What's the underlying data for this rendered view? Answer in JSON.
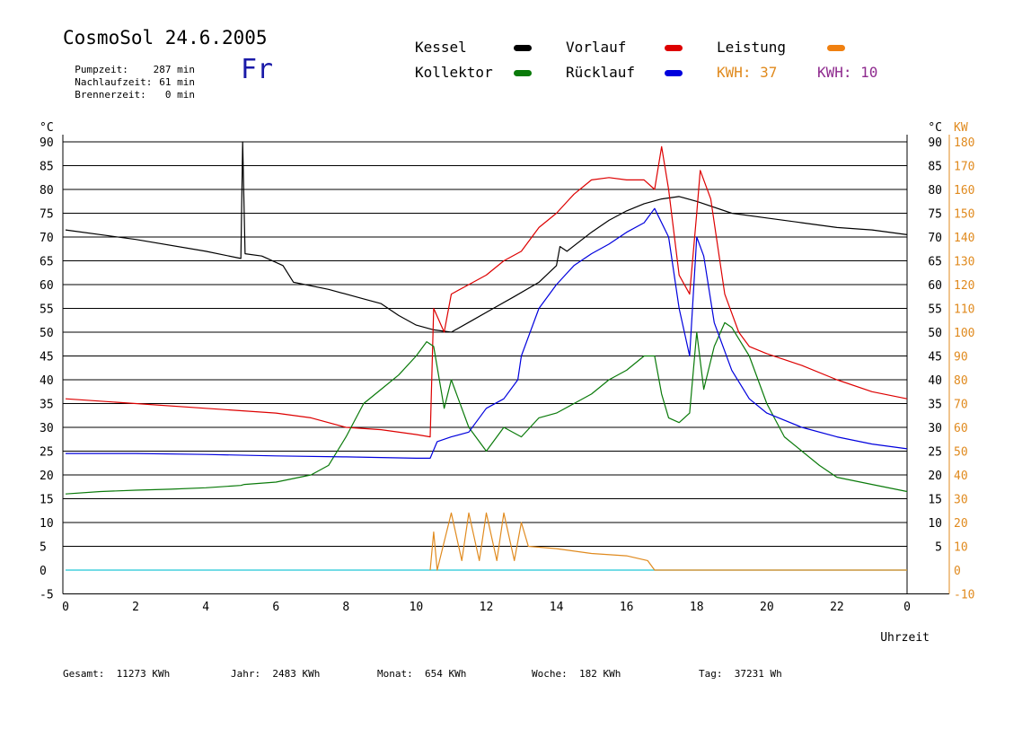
{
  "header": {
    "title": "CosmoSol 24.6.2005",
    "day": "Fr",
    "stats": [
      {
        "label": "Pumpzeit:",
        "value": "287 min"
      },
      {
        "label": "Nachlaufzeit:",
        "value": "61 min"
      },
      {
        "label": "Brennerzeit:",
        "value": "0 min"
      }
    ]
  },
  "legend": [
    {
      "label": "Kessel",
      "color": "#000000"
    },
    {
      "label": "Vorlauf",
      "color": "#dd0000"
    },
    {
      "label": "Leistung",
      "color": "#f08010"
    },
    {
      "label": "Kollektor",
      "color": "#0a7a0a"
    },
    {
      "label": "Rücklauf",
      "color": "#0000dd"
    }
  ],
  "kwh": [
    {
      "label": "KWH:",
      "value": "37",
      "color": "#e08a1e"
    },
    {
      "label": "KWH:",
      "value": "10",
      "color": "#8e2a8e"
    }
  ],
  "footer": [
    {
      "label": "Gesamt:",
      "value": "11273 KWh"
    },
    {
      "label": "Jahr:",
      "value": "2483 KWh"
    },
    {
      "label": "Monat:",
      "value": "654 KWh"
    },
    {
      "label": "Woche:",
      "value": "182 KWh"
    },
    {
      "label": "Tag:",
      "value": "37231 Wh"
    }
  ],
  "chart_data": {
    "type": "line",
    "xlabel": "Uhrzeit",
    "ylabel": "°C",
    "y2label": "KW",
    "xlim": [
      0,
      24
    ],
    "ylim": [
      -5,
      90
    ],
    "y2lim": [
      -10,
      180
    ],
    "x_ticks": [
      "0",
      "2",
      "4",
      "6",
      "8",
      "10",
      "12",
      "14",
      "16",
      "18",
      "20",
      "22",
      "0"
    ],
    "y_left_ticks": [
      "-5",
      "0",
      "5",
      "10",
      "15",
      "20",
      "25",
      "30",
      "35",
      "40",
      "45",
      "50",
      "55",
      "60",
      "65",
      "70",
      "75",
      "80",
      "85",
      "90"
    ],
    "y_right_temp_ticks": [
      "5",
      "10",
      "15",
      "20",
      "25",
      "30",
      "35",
      "40",
      "45",
      "50",
      "55",
      "60",
      "65",
      "70",
      "75",
      "80",
      "85",
      "90"
    ],
    "y_right_kw_ticks": [
      "-10",
      "0",
      "10",
      "20",
      "30",
      "40",
      "50",
      "60",
      "70",
      "80",
      "90",
      "100",
      "110",
      "120",
      "130",
      "140",
      "150",
      "160",
      "170",
      "180"
    ],
    "grid": true,
    "series": [
      {
        "name": "Kessel",
        "color": "#000000",
        "points": [
          [
            0,
            71.5
          ],
          [
            2,
            69.5
          ],
          [
            4,
            67
          ],
          [
            5,
            65.5
          ],
          [
            5.05,
            90
          ],
          [
            5.12,
            66.5
          ],
          [
            5.6,
            66
          ],
          [
            6.2,
            64
          ],
          [
            6.5,
            60.5
          ],
          [
            7.5,
            59
          ],
          [
            8.5,
            57
          ],
          [
            9,
            56
          ],
          [
            9.5,
            53.5
          ],
          [
            10,
            51.5
          ],
          [
            10.5,
            50.5
          ],
          [
            11,
            50
          ],
          [
            11.6,
            52.5
          ],
          [
            12.2,
            55
          ],
          [
            12.8,
            57.5
          ],
          [
            13.5,
            60.5
          ],
          [
            14,
            64
          ],
          [
            14.1,
            68
          ],
          [
            14.3,
            67
          ],
          [
            15,
            71
          ],
          [
            15.5,
            73.5
          ],
          [
            16,
            75.5
          ],
          [
            16.5,
            77
          ],
          [
            17,
            78
          ],
          [
            17.5,
            78.5
          ],
          [
            18,
            77.5
          ],
          [
            19,
            75
          ],
          [
            20,
            74
          ],
          [
            21,
            73
          ],
          [
            22,
            72
          ],
          [
            23,
            71.5
          ],
          [
            24,
            70.5
          ]
        ]
      },
      {
        "name": "Vorlauf",
        "color": "#dd0000",
        "points": [
          [
            0,
            36
          ],
          [
            2,
            35
          ],
          [
            4,
            34
          ],
          [
            6,
            33
          ],
          [
            7,
            32
          ],
          [
            8,
            30
          ],
          [
            9,
            29.5
          ],
          [
            10,
            28.5
          ],
          [
            10.4,
            28
          ],
          [
            10.5,
            55
          ],
          [
            10.8,
            50
          ],
          [
            11,
            58
          ],
          [
            11.5,
            60
          ],
          [
            12,
            62
          ],
          [
            12.5,
            65
          ],
          [
            13,
            67
          ],
          [
            13.5,
            72
          ],
          [
            14,
            75
          ],
          [
            14.5,
            79
          ],
          [
            15,
            82
          ],
          [
            15.5,
            82.5
          ],
          [
            16,
            82
          ],
          [
            16.5,
            82
          ],
          [
            16.8,
            80
          ],
          [
            17,
            89
          ],
          [
            17.2,
            80
          ],
          [
            17.5,
            62
          ],
          [
            17.8,
            58
          ],
          [
            18,
            75
          ],
          [
            18.1,
            84
          ],
          [
            18.4,
            78
          ],
          [
            18.8,
            58
          ],
          [
            19.2,
            50
          ],
          [
            19.5,
            47
          ],
          [
            20,
            45.5
          ],
          [
            21,
            43
          ],
          [
            22,
            40
          ],
          [
            23,
            37.5
          ],
          [
            24,
            36
          ]
        ]
      },
      {
        "name": "Kollektor",
        "color": "#0a7a0a",
        "points": [
          [
            0,
            16
          ],
          [
            1,
            16.5
          ],
          [
            2,
            16.8
          ],
          [
            3,
            17
          ],
          [
            4,
            17.3
          ],
          [
            5,
            17.8
          ],
          [
            5.1,
            18
          ],
          [
            6,
            18.5
          ],
          [
            7,
            20
          ],
          [
            7.5,
            22
          ],
          [
            8,
            28
          ],
          [
            8.5,
            35
          ],
          [
            9,
            38
          ],
          [
            9.5,
            41
          ],
          [
            10,
            45
          ],
          [
            10.3,
            48
          ],
          [
            10.5,
            47
          ],
          [
            10.8,
            34
          ],
          [
            11,
            40
          ],
          [
            11.5,
            30
          ],
          [
            12,
            25
          ],
          [
            12.5,
            30
          ],
          [
            13,
            28
          ],
          [
            13.5,
            32
          ],
          [
            14,
            33
          ],
          [
            14.5,
            35
          ],
          [
            15,
            37
          ],
          [
            15.5,
            40
          ],
          [
            16,
            42
          ],
          [
            16.5,
            45
          ],
          [
            16.8,
            45
          ],
          [
            17,
            37
          ],
          [
            17.2,
            32
          ],
          [
            17.5,
            31
          ],
          [
            17.8,
            33
          ],
          [
            18,
            50
          ],
          [
            18.2,
            38
          ],
          [
            18.5,
            47
          ],
          [
            18.8,
            52
          ],
          [
            19,
            51
          ],
          [
            19.5,
            45
          ],
          [
            20,
            35
          ],
          [
            20.5,
            28
          ],
          [
            21,
            25
          ],
          [
            21.5,
            22
          ],
          [
            22,
            19.5
          ],
          [
            23,
            18
          ],
          [
            24,
            16.5
          ]
        ]
      },
      {
        "name": "Rücklauf",
        "color": "#0000dd",
        "points": [
          [
            0,
            24.5
          ],
          [
            2,
            24.5
          ],
          [
            4,
            24.3
          ],
          [
            6,
            24
          ],
          [
            8,
            23.8
          ],
          [
            10,
            23.5
          ],
          [
            10.4,
            23.5
          ],
          [
            10.6,
            27
          ],
          [
            11,
            28
          ],
          [
            11.5,
            29
          ],
          [
            12,
            34
          ],
          [
            12.5,
            36
          ],
          [
            12.9,
            40
          ],
          [
            13,
            45
          ],
          [
            13.5,
            55
          ],
          [
            14,
            60
          ],
          [
            14.5,
            64
          ],
          [
            15,
            66.5
          ],
          [
            15.5,
            68.5
          ],
          [
            16,
            71
          ],
          [
            16.5,
            73
          ],
          [
            16.8,
            76
          ],
          [
            17.2,
            70
          ],
          [
            17.5,
            55
          ],
          [
            17.8,
            45
          ],
          [
            18,
            70
          ],
          [
            18.2,
            66
          ],
          [
            18.5,
            52
          ],
          [
            19,
            42
          ],
          [
            19.5,
            36
          ],
          [
            20,
            33
          ],
          [
            21,
            30
          ],
          [
            22,
            28
          ],
          [
            23,
            26.5
          ],
          [
            24,
            25.5
          ]
        ]
      },
      {
        "name": "Leistung",
        "color": "#e08a1e",
        "points": [
          [
            10.4,
            0
          ],
          [
            10.5,
            8
          ],
          [
            10.6,
            0
          ],
          [
            11,
            12
          ],
          [
            11.3,
            2
          ],
          [
            11.5,
            12
          ],
          [
            11.8,
            2
          ],
          [
            12,
            12
          ],
          [
            12.3,
            2
          ],
          [
            12.5,
            12
          ],
          [
            12.8,
            2
          ],
          [
            13,
            10
          ],
          [
            13.2,
            5
          ],
          [
            14,
            4.5
          ],
          [
            15,
            3.5
          ],
          [
            16,
            3
          ],
          [
            16.6,
            2
          ],
          [
            16.8,
            0
          ],
          [
            17,
            0
          ],
          [
            17.5,
            0
          ],
          [
            18,
            0
          ],
          [
            24,
            0
          ]
        ]
      }
    ],
    "baseline": {
      "name": "",
      "color": "#22c7d6",
      "value": 0,
      "xlim": [
        0,
        24
      ]
    }
  }
}
